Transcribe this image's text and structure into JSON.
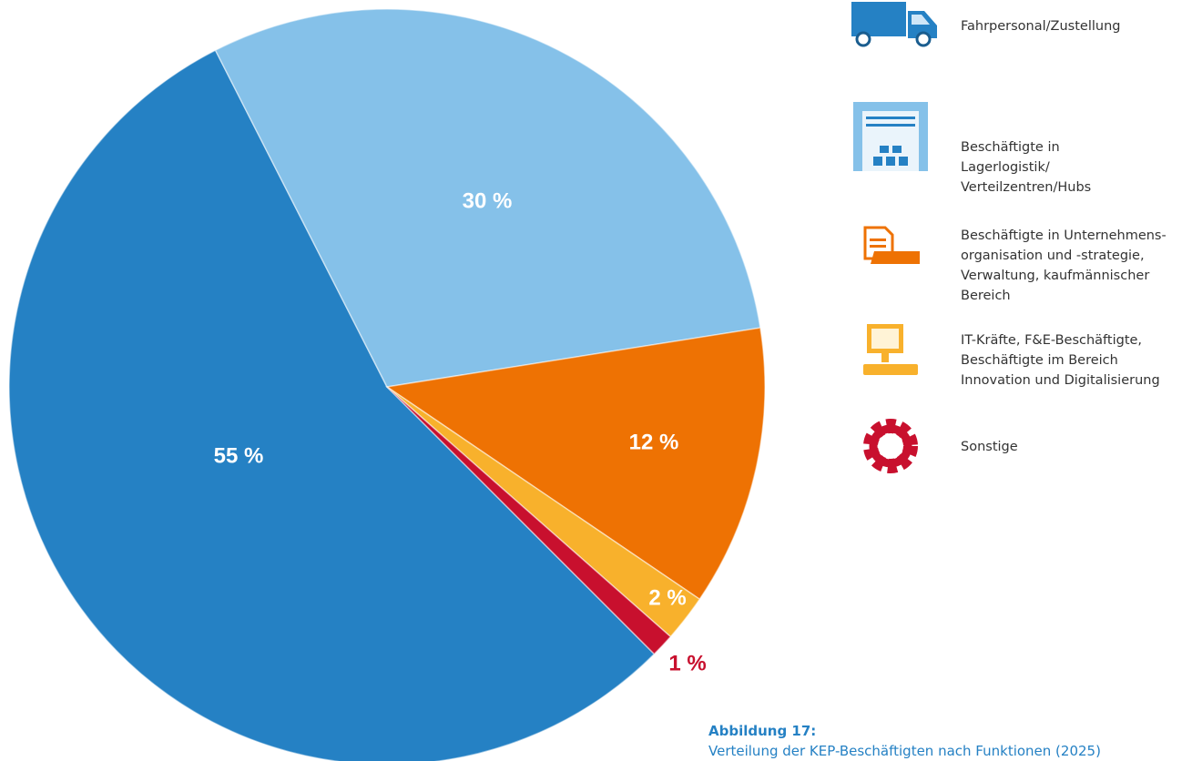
{
  "chart_data": {
    "type": "pie",
    "categories": [
      "Fahrpersonal/Zustellung",
      "Beschäftigte in Lagerlogistik/ Verteilzentren/Hubs",
      "Beschäftigte in Unternehmens-organisation und -strategie, Verwaltung, kaufmännischer Bereich",
      "IT-Kräfte, F&E-Beschäftigte, Beschäftigte im Bereich Innovation und Digitalisierung",
      "Sonstige"
    ],
    "values": [
      55,
      30,
      12,
      2,
      1
    ],
    "value_labels": [
      "55 %",
      "30 %",
      "12 %",
      "2 %",
      "1 %"
    ],
    "colors": [
      "#2581c4",
      "#85c1e9",
      "#ee7203",
      "#f8b12c",
      "#c8102e"
    ],
    "caption_title": "Abbildung 17:",
    "caption": "Verteilung der KEP-Beschäftigten nach Funktionen (2025)"
  }
}
